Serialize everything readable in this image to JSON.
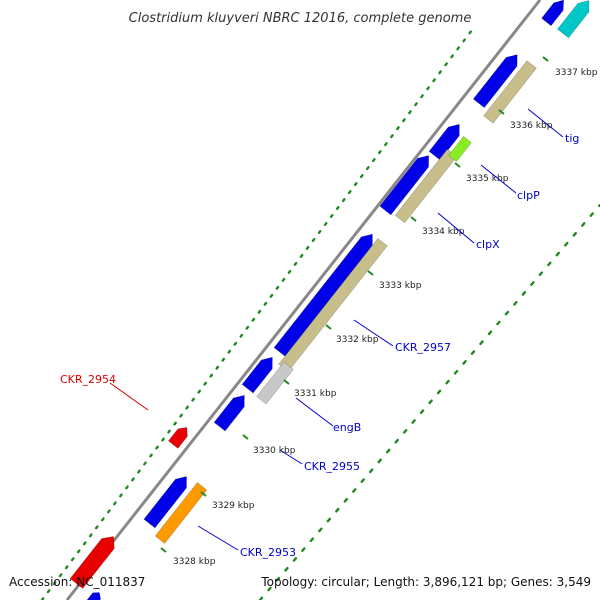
{
  "title": "Clostridium kluyveri NBRC 12016, complete genome",
  "footer": {
    "accession": "Accession: NC_011837",
    "summary": "Topology: circular; Length: 3,896,121 bp; Genes: 3,549"
  },
  "colors": {
    "background": "#ffffff",
    "backbone": "#888888",
    "forward_cds": "#0000e8",
    "reverse_cds": "#e80000",
    "rna_or_other": "#00c8c8",
    "gene_bar": "#c8be8c",
    "highlight_green": "#88ee22",
    "highlight_orange": "#ff9900",
    "highlight_gray": "#c8c8c8",
    "gc_dots": "#228822",
    "label_blue": "#0000cc",
    "label_red": "#dd0000"
  },
  "ticks": [
    {
      "label": "3328 kbp"
    },
    {
      "label": "3329 kbp"
    },
    {
      "label": "3330 kbp"
    },
    {
      "label": "3331 kbp"
    },
    {
      "label": "3332 kbp"
    },
    {
      "label": "3333 kbp"
    },
    {
      "label": "3334 kbp"
    },
    {
      "label": "3335 kbp"
    },
    {
      "label": "3336 kbp"
    },
    {
      "label": "3337 kbp"
    }
  ],
  "gene_labels": [
    {
      "name": "CKR_2954",
      "strand": "reverse"
    },
    {
      "name": "CKR_2953",
      "strand": "forward"
    },
    {
      "name": "CKR_2955",
      "strand": "forward"
    },
    {
      "name": "engB",
      "strand": "forward"
    },
    {
      "name": "CKR_2957",
      "strand": "forward"
    },
    {
      "name": "clpX",
      "strand": "forward"
    },
    {
      "name": "clpP",
      "strand": "forward"
    },
    {
      "name": "tig",
      "strand": "forward"
    }
  ]
}
